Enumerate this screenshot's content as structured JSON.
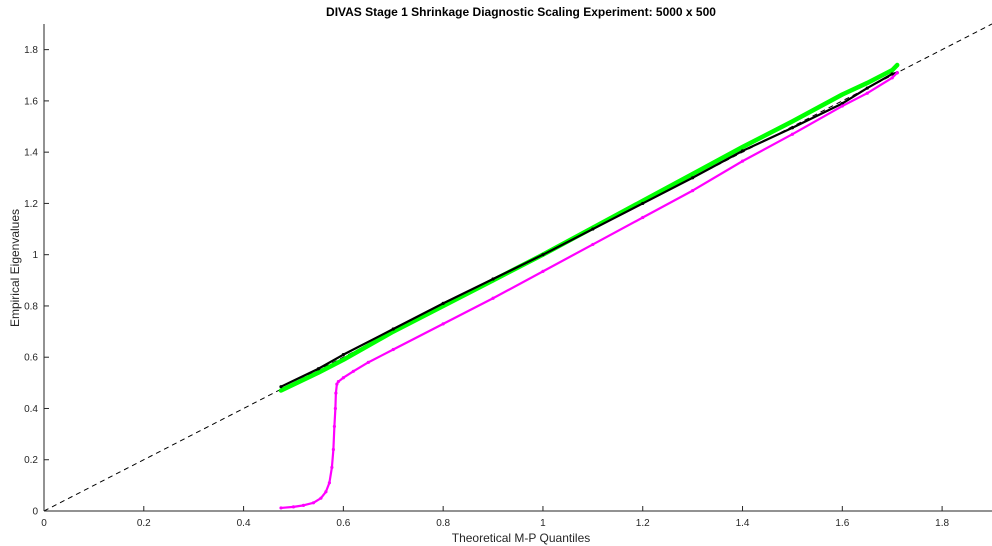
{
  "chart_data": {
    "type": "scatter",
    "title": "DIVAS Stage 1 Shrinkage Diagnostic Scaling Experiment: 5000 x 500",
    "xlabel": "Theoretical M-P Quantiles",
    "ylabel": "Empirical Eigenvalues",
    "xlim": [
      0,
      1.9
    ],
    "ylim": [
      0,
      1.9
    ],
    "xticks": [
      "0",
      "0.2",
      "0.4",
      "0.6",
      "0.8",
      "1",
      "1.2",
      "1.4",
      "1.6",
      "1.8"
    ],
    "yticks": [
      "0",
      "0.2",
      "0.4",
      "0.6",
      "0.8",
      "1",
      "1.2",
      "1.4",
      "1.6",
      "1.8"
    ],
    "grid": false,
    "reference_line": {
      "style": "dashed",
      "color": "#000000",
      "x": [
        0,
        1.9
      ],
      "y": [
        0,
        1.9
      ]
    },
    "series": [
      {
        "color": "#00ff00",
        "x": [
          0.475,
          0.55,
          0.6,
          0.7,
          0.8,
          0.9,
          1.0,
          1.1,
          1.2,
          1.3,
          1.4,
          1.5,
          1.6,
          1.65,
          1.7,
          1.71
        ],
        "y": [
          0.47,
          0.54,
          0.59,
          0.7,
          0.8,
          0.9,
          1.0,
          1.105,
          1.21,
          1.315,
          1.42,
          1.52,
          1.625,
          1.67,
          1.72,
          1.74
        ]
      },
      {
        "color": "#000000",
        "x": [
          0.475,
          0.55,
          0.6,
          0.7,
          0.8,
          0.9,
          1.0,
          1.1,
          1.2,
          1.3,
          1.4,
          1.5,
          1.6,
          1.65,
          1.7,
          1.71
        ],
        "y": [
          0.485,
          0.555,
          0.61,
          0.71,
          0.81,
          0.905,
          1.0,
          1.1,
          1.2,
          1.3,
          1.405,
          1.495,
          1.59,
          1.65,
          1.705,
          1.71
        ]
      },
      {
        "color": "#ff00ff",
        "x": [
          0.475,
          0.5,
          0.52,
          0.54,
          0.555,
          0.565,
          0.572,
          0.577,
          0.58,
          0.582,
          0.584,
          0.585,
          0.587,
          0.59,
          0.6,
          0.62,
          0.65,
          0.7,
          0.8,
          0.9,
          1.0,
          1.1,
          1.2,
          1.3,
          1.4,
          1.5,
          1.6,
          1.65,
          1.7,
          1.71
        ],
        "y": [
          0.012,
          0.016,
          0.022,
          0.032,
          0.05,
          0.075,
          0.11,
          0.17,
          0.24,
          0.33,
          0.4,
          0.46,
          0.495,
          0.505,
          0.52,
          0.545,
          0.58,
          0.63,
          0.73,
          0.83,
          0.935,
          1.04,
          1.145,
          1.25,
          1.365,
          1.47,
          1.58,
          1.63,
          1.69,
          1.71
        ]
      }
    ]
  }
}
